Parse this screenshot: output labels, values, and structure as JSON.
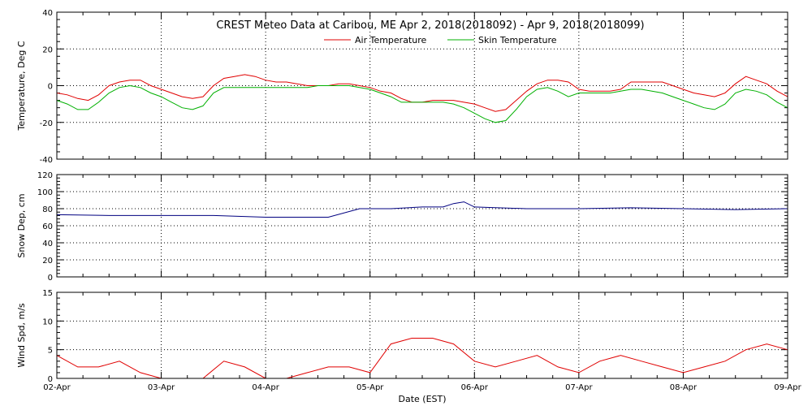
{
  "chart_data": [
    {
      "type": "line",
      "title": "CREST Meteo Data at Caribou, ME   Apr  2, 2018(2018092) - Apr  9, 2018(2018099)",
      "ylabel": "Temperature, Deg C",
      "ylim": [
        -40,
        40
      ],
      "yticks": [
        "40",
        "20",
        "0",
        "-20",
        "-40"
      ],
      "grid": true,
      "legend": "top-center",
      "colors": {
        "air": "#e00000",
        "skin": "#00b000"
      },
      "series": [
        {
          "name": "Air Temperature",
          "color": "#e00000",
          "x": [
            0,
            0.1,
            0.2,
            0.3,
            0.4,
            0.5,
            0.6,
            0.7,
            0.8,
            0.9,
            1.0,
            1.1,
            1.2,
            1.3,
            1.4,
            1.5,
            1.6,
            1.7,
            1.8,
            1.9,
            2.0,
            2.1,
            2.2,
            2.3,
            2.4,
            2.5,
            2.6,
            2.7,
            2.8,
            2.9,
            3.0,
            3.1,
            3.2,
            3.3,
            3.4,
            3.5,
            3.6,
            3.7,
            3.8,
            3.9,
            4.0,
            4.1,
            4.2,
            4.3,
            4.4,
            4.5,
            4.6,
            4.7,
            4.8,
            4.9,
            5.0,
            5.1,
            5.2,
            5.3,
            5.4,
            5.5,
            5.6,
            5.7,
            5.8,
            5.9,
            6.0,
            6.1,
            6.2,
            6.3,
            6.4,
            6.5,
            6.6,
            6.7,
            6.8,
            6.9,
            7.0
          ],
          "y": [
            -4,
            -5,
            -7,
            -8,
            -5,
            0,
            2,
            3,
            3,
            0,
            -2,
            -4,
            -6,
            -7,
            -6,
            0,
            4,
            5,
            6,
            5,
            3,
            2,
            2,
            1,
            0,
            0,
            0,
            1,
            1,
            0,
            -1,
            -3,
            -4,
            -7,
            -9,
            -9,
            -8,
            -8,
            -8,
            -9,
            -10,
            -12,
            -14,
            -13,
            -8,
            -3,
            1,
            3,
            3,
            2,
            -2,
            -3,
            -3,
            -3,
            -2,
            2,
            2,
            2,
            2,
            0,
            -2,
            -4,
            -5,
            -6,
            -4,
            1,
            5,
            3,
            1,
            -3,
            -6
          ]
        },
        {
          "name": "Skin Temperature",
          "color": "#00b000",
          "x": [
            0,
            0.1,
            0.2,
            0.3,
            0.4,
            0.5,
            0.6,
            0.7,
            0.8,
            0.9,
            1.0,
            1.1,
            1.2,
            1.3,
            1.4,
            1.5,
            1.6,
            1.7,
            1.8,
            1.9,
            2.0,
            2.1,
            2.2,
            2.3,
            2.4,
            2.5,
            2.6,
            2.7,
            2.8,
            2.9,
            3.0,
            3.1,
            3.2,
            3.3,
            3.4,
            3.5,
            3.6,
            3.7,
            3.8,
            3.9,
            4.0,
            4.1,
            4.2,
            4.3,
            4.4,
            4.5,
            4.6,
            4.7,
            4.8,
            4.9,
            5.0,
            5.1,
            5.2,
            5.3,
            5.4,
            5.5,
            5.6,
            5.7,
            5.8,
            5.9,
            6.0,
            6.1,
            6.2,
            6.3,
            6.4,
            6.5,
            6.6,
            6.7,
            6.8,
            6.9,
            7.0
          ],
          "y": [
            -8,
            -10,
            -13,
            -13,
            -9,
            -4,
            -1,
            0,
            -1,
            -4,
            -6,
            -9,
            -12,
            -13,
            -11,
            -4,
            -1,
            -1,
            -1,
            -1,
            -1,
            -1,
            -1,
            -1,
            -1,
            0,
            0,
            0,
            0,
            -1,
            -2,
            -4,
            -6,
            -9,
            -9,
            -9,
            -9,
            -9,
            -10,
            -12,
            -15,
            -18,
            -20,
            -19,
            -13,
            -6,
            -2,
            -1,
            -3,
            -6,
            -4,
            -4,
            -4,
            -4,
            -3,
            -2,
            -2,
            -3,
            -4,
            -6,
            -8,
            -10,
            -12,
            -13,
            -10,
            -4,
            -2,
            -3,
            -5,
            -9,
            -12
          ]
        }
      ]
    },
    {
      "type": "line",
      "ylabel": "Snow Dep, cm",
      "ylim": [
        0,
        120
      ],
      "yticks": [
        "120",
        "100",
        "80",
        "60",
        "40",
        "20",
        "0"
      ],
      "grid": true,
      "series": [
        {
          "color": "#000080",
          "x": [
            0,
            0.5,
            1.0,
            1.5,
            2.0,
            2.3,
            2.6,
            2.9,
            3.2,
            3.5,
            3.7,
            3.8,
            3.9,
            4.0,
            4.5,
            5.0,
            5.5,
            6.0,
            6.5,
            7.0
          ],
          "y": [
            73,
            72,
            72,
            72,
            70,
            70,
            70,
            80,
            80,
            82,
            82,
            86,
            88,
            82,
            80,
            80,
            81,
            80,
            79,
            80
          ]
        }
      ]
    },
    {
      "type": "line",
      "ylabel": "Wind Spd, m/s",
      "xlabel": "Date (EST)",
      "ylim": [
        0,
        15
      ],
      "yticks": [
        "15",
        "10",
        "5",
        "0"
      ],
      "grid": true,
      "series": [
        {
          "color": "#e00000",
          "x": [
            0,
            0.2,
            0.4,
            0.6,
            0.8,
            1.0,
            1.2,
            1.4,
            1.6,
            1.8,
            2.0,
            2.2,
            2.4,
            2.6,
            2.8,
            3.0,
            3.2,
            3.4,
            3.6,
            3.8,
            4.0,
            4.2,
            4.4,
            4.6,
            4.8,
            5.0,
            5.2,
            5.4,
            5.6,
            5.8,
            6.0,
            6.2,
            6.4,
            6.6,
            6.8,
            7.0
          ],
          "y": [
            4,
            2,
            2,
            3,
            1,
            0,
            0,
            0,
            3,
            2,
            0,
            0,
            1,
            2,
            2,
            1,
            6,
            7,
            7,
            6,
            3,
            2,
            3,
            4,
            2,
            1,
            3,
            4,
            3,
            2,
            1,
            2,
            3,
            5,
            6,
            5
          ]
        }
      ]
    }
  ],
  "xaxis": {
    "label": "Date (EST)",
    "ticks": [
      "02-Apr",
      "03-Apr",
      "04-Apr",
      "05-Apr",
      "06-Apr",
      "07-Apr",
      "08-Apr",
      "09-Apr"
    ]
  },
  "legend": {
    "air": "Air Temperature",
    "skin": "Skin Temperature"
  }
}
